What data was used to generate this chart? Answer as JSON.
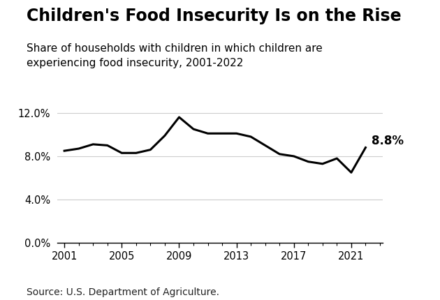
{
  "title": "Children's Food Insecurity Is on the Rise",
  "subtitle": "Share of households with children in which children are\nexperiencing food insecurity, 2001-2022",
  "source": "Source: U.S. Department of Agriculture.",
  "years": [
    2001,
    2002,
    2003,
    2004,
    2005,
    2006,
    2007,
    2008,
    2009,
    2010,
    2011,
    2012,
    2013,
    2014,
    2015,
    2016,
    2017,
    2018,
    2019,
    2020,
    2021,
    2022
  ],
  "values": [
    0.085,
    0.087,
    0.091,
    0.09,
    0.083,
    0.083,
    0.086,
    0.099,
    0.116,
    0.105,
    0.101,
    0.101,
    0.101,
    0.098,
    0.09,
    0.082,
    0.08,
    0.075,
    0.073,
    0.078,
    0.065,
    0.088
  ],
  "annotation_text": "8.8%",
  "annotation_year": 2022,
  "annotation_value": 0.088,
  "line_color": "#000000",
  "line_width": 2.2,
  "ylim": [
    0.0,
    0.13
  ],
  "yticks": [
    0.0,
    0.04,
    0.08,
    0.12
  ],
  "ytick_labels": [
    "0.0%",
    "4.0%",
    "8.0%",
    "12.0%"
  ],
  "xticks": [
    2001,
    2005,
    2009,
    2013,
    2017,
    2021
  ],
  "grid_color": "#cccccc",
  "bg_color": "#ffffff",
  "title_fontsize": 17,
  "subtitle_fontsize": 11,
  "source_fontsize": 10
}
